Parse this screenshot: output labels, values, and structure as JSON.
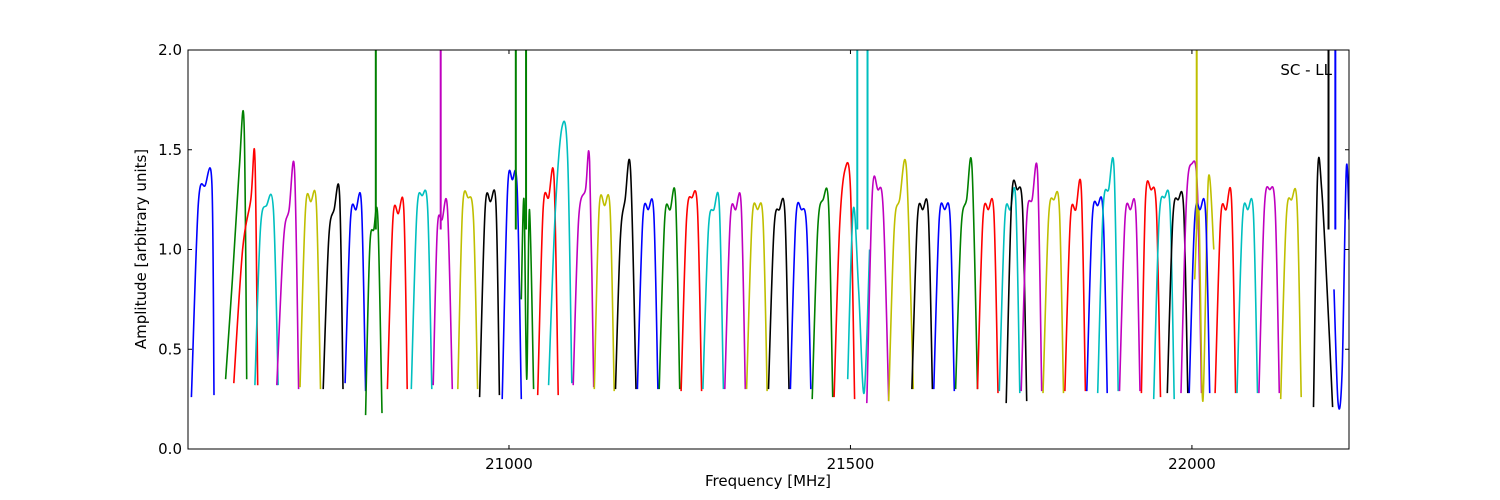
{
  "chart_data": {
    "type": "line",
    "title": "",
    "xlabel": "Frequency [MHz]",
    "ylabel": "Amplitude [arbitrary units]",
    "annotation": "SC - LL",
    "xlim": [
      20530,
      22230
    ],
    "ylim": [
      0.0,
      2.0
    ],
    "x_ticks": [
      21000,
      21500,
      22000
    ],
    "x_tick_labels": [
      "21000",
      "21500",
      "22000"
    ],
    "y_ticks": [
      0.0,
      0.5,
      1.0,
      1.5,
      2.0
    ],
    "y_tick_labels": [
      "0.0",
      "0.5",
      "1.0",
      "1.5",
      "2.0"
    ],
    "grid": false,
    "legend": "none",
    "color_cycle": [
      "#0000ff",
      "#008000",
      "#ff0000",
      "#00bfbf",
      "#bf00bf",
      "#bfbf00",
      "#000000"
    ],
    "shadow_color": "#c0c0c0",
    "channel_width_mhz": 33,
    "series": [
      {
        "color": "#0000ff",
        "x": [
          20535,
          20545,
          20555,
          20565,
          20568
        ],
        "y": [
          0.26,
          1.22,
          1.32,
          1.33,
          0.27
        ]
      },
      {
        "color": "#008000",
        "x": [
          20585,
          20595,
          20605,
          20612,
          20616
        ],
        "y": [
          0.35,
          0.85,
          1.4,
          1.64,
          0.35
        ]
      },
      {
        "color": "#ff0000",
        "x": [
          20597,
          20610,
          20622,
          20628,
          20632
        ],
        "y": [
          0.33,
          1.0,
          1.25,
          1.46,
          0.32
        ]
      },
      {
        "color": "#00bfbf",
        "x": [
          20628,
          20636,
          20645,
          20655,
          20662
        ],
        "y": [
          0.32,
          1.1,
          1.22,
          1.2,
          0.32
        ]
      },
      {
        "color": "#bf00bf",
        "x": [
          20660,
          20670,
          20678,
          20686,
          20692
        ],
        "y": [
          0.32,
          1.05,
          1.2,
          1.4,
          0.3
        ]
      },
      {
        "color": "#bfbf00",
        "x": [
          20694,
          20702,
          20710,
          20718,
          20724
        ],
        "y": [
          0.31,
          1.2,
          1.24,
          1.22,
          0.3
        ]
      },
      {
        "color": "#000000",
        "x": [
          20728,
          20736,
          20744,
          20752,
          20757
        ],
        "y": [
          0.3,
          1.05,
          1.2,
          1.27,
          0.3
        ]
      },
      {
        "color": "#0000ff",
        "x": [
          20760,
          20768,
          20776,
          20784,
          20790
        ],
        "y": [
          0.33,
          1.15,
          1.2,
          1.22,
          0.29
        ]
      },
      {
        "color": "#008000",
        "x": [
          20790,
          20796,
          20802,
          20808,
          20814
        ],
        "y": [
          0.17,
          1.0,
          1.1,
          1.15,
          0.18
        ]
      },
      {
        "color": "#ff0000",
        "x": [
          20822,
          20830,
          20838,
          20846,
          20851
        ],
        "y": [
          0.3,
          1.15,
          1.18,
          1.2,
          0.3
        ]
      },
      {
        "color": "#00bfbf",
        "x": [
          20857,
          20865,
          20873,
          20881,
          20887
        ],
        "y": [
          0.3,
          1.18,
          1.27,
          1.2,
          0.3
        ]
      },
      {
        "color": "#bf00bf",
        "x": [
          20889,
          20895,
          20902,
          20910,
          20917
        ],
        "y": [
          0.32,
          1.1,
          1.15,
          1.2,
          0.3
        ]
      },
      {
        "color": "#bfbf00",
        "x": [
          20925,
          20932,
          20940,
          20948,
          20954
        ],
        "y": [
          0.3,
          1.2,
          1.26,
          1.15,
          0.3
        ]
      },
      {
        "color": "#000000",
        "x": [
          20957,
          20965,
          20973,
          20981,
          20986
        ],
        "y": [
          0.26,
          1.2,
          1.24,
          1.22,
          0.27
        ]
      },
      {
        "color": "#0000ff",
        "x": [
          20990,
          20998,
          21005,
          21012,
          21018
        ],
        "y": [
          0.25,
          1.3,
          1.35,
          1.3,
          0.25
        ]
      },
      {
        "color": "#008000",
        "x": [
          21018,
          21022,
          21026,
          21030,
          21036
        ],
        "y": [
          0.75,
          1.25,
          0.35,
          1.2,
          0.3
        ]
      },
      {
        "color": "#ff0000",
        "x": [
          21042,
          21050,
          21058,
          21066,
          21072
        ],
        "y": [
          0.27,
          1.2,
          1.26,
          1.35,
          0.27
        ]
      },
      {
        "color": "#00bfbf",
        "x": [
          21058,
          21068,
          21078,
          21086,
          21092
        ],
        "y": [
          0.32,
          1.2,
          1.62,
          1.45,
          0.33
        ]
      },
      {
        "color": "#bf00bf",
        "x": [
          21094,
          21102,
          21112,
          21118,
          21124
        ],
        "y": [
          0.32,
          1.15,
          1.3,
          1.44,
          0.31
        ]
      },
      {
        "color": "#bfbf00",
        "x": [
          21125,
          21132,
          21140,
          21148,
          21154
        ],
        "y": [
          0.3,
          1.2,
          1.22,
          1.2,
          0.29
        ]
      },
      {
        "color": "#000000",
        "x": [
          21156,
          21163,
          21170,
          21178,
          21186
        ],
        "y": [
          0.3,
          1.05,
          1.25,
          1.4,
          0.3
        ]
      },
      {
        "color": "#0000ff",
        "x": [
          21188,
          21196,
          21204,
          21212,
          21218
        ],
        "y": [
          0.3,
          1.15,
          1.2,
          1.18,
          0.3
        ]
      },
      {
        "color": "#008000",
        "x": [
          21220,
          21228,
          21236,
          21244,
          21250
        ],
        "y": [
          0.3,
          1.15,
          1.2,
          1.25,
          0.3
        ]
      },
      {
        "color": "#ff0000",
        "x": [
          21252,
          21260,
          21268,
          21276,
          21282
        ],
        "y": [
          0.29,
          1.15,
          1.26,
          1.2,
          0.29
        ]
      },
      {
        "color": "#00bfbf",
        "x": [
          21284,
          21292,
          21300,
          21308,
          21314
        ],
        "y": [
          0.3,
          1.1,
          1.2,
          1.22,
          0.3
        ]
      },
      {
        "color": "#bf00bf",
        "x": [
          21316,
          21324,
          21332,
          21340,
          21346
        ],
        "y": [
          0.3,
          1.15,
          1.2,
          1.22,
          0.3
        ]
      },
      {
        "color": "#bfbf00",
        "x": [
          21348,
          21356,
          21364,
          21372,
          21378
        ],
        "y": [
          0.3,
          1.15,
          1.2,
          1.15,
          0.29
        ]
      },
      {
        "color": "#000000",
        "x": [
          21380,
          21388,
          21396,
          21404,
          21410
        ],
        "y": [
          0.3,
          1.1,
          1.2,
          1.18,
          0.3
        ]
      },
      {
        "color": "#0000ff",
        "x": [
          21412,
          21420,
          21428,
          21436,
          21442
        ],
        "y": [
          0.3,
          1.15,
          1.2,
          1.1,
          0.3
        ]
      },
      {
        "color": "#008000",
        "x": [
          21444,
          21452,
          21460,
          21468,
          21474
        ],
        "y": [
          0.25,
          1.1,
          1.25,
          1.22,
          0.26
        ]
      },
      {
        "color": "#ff0000",
        "x": [
          21476,
          21484,
          21492,
          21500,
          21506
        ],
        "y": [
          0.26,
          1.1,
          1.4,
          1.3,
          0.25
        ]
      },
      {
        "color": "#00bfbf",
        "x": [
          21496,
          21504,
          21512,
          21520,
          21528
        ],
        "y": [
          0.35,
          1.2,
          0.8,
          0.28,
          1.0
        ]
      },
      {
        "color": "#bf00bf",
        "x": [
          21524,
          21532,
          21540,
          21548,
          21556
        ],
        "y": [
          0.23,
          1.28,
          1.3,
          1.2,
          0.24
        ]
      },
      {
        "color": "#bfbf00",
        "x": [
          21556,
          21564,
          21572,
          21582,
          21592
        ],
        "y": [
          0.24,
          1.1,
          1.25,
          1.4,
          0.3
        ]
      },
      {
        "color": "#000000",
        "x": [
          21590,
          21598,
          21606,
          21614,
          21620
        ],
        "y": [
          0.3,
          1.15,
          1.2,
          1.18,
          0.3
        ]
      },
      {
        "color": "#0000ff",
        "x": [
          21622,
          21630,
          21638,
          21646,
          21652
        ],
        "y": [
          0.3,
          1.15,
          1.2,
          1.15,
          0.29
        ]
      },
      {
        "color": "#008000",
        "x": [
          21654,
          21662,
          21670,
          21678,
          21686
        ],
        "y": [
          0.3,
          1.1,
          1.25,
          1.41,
          0.3
        ]
      },
      {
        "color": "#ff0000",
        "x": [
          21686,
          21694,
          21702,
          21710,
          21716
        ],
        "y": [
          0.3,
          1.15,
          1.2,
          1.18,
          0.28
        ]
      },
      {
        "color": "#00bfbf",
        "x": [
          21718,
          21726,
          21734,
          21742,
          21748
        ],
        "y": [
          0.29,
          1.15,
          1.2,
          1.25,
          0.28
        ]
      },
      {
        "color": "#000000",
        "x": [
          21728,
          21736,
          21744,
          21752,
          21758
        ],
        "y": [
          0.23,
          1.25,
          1.3,
          1.2,
          0.24
        ]
      },
      {
        "color": "#bf00bf",
        "x": [
          21750,
          21758,
          21766,
          21774,
          21780
        ],
        "y": [
          0.29,
          1.15,
          1.25,
          1.38,
          0.29
        ]
      },
      {
        "color": "#bfbf00",
        "x": [
          21782,
          21790,
          21798,
          21806,
          21812
        ],
        "y": [
          0.28,
          1.15,
          1.25,
          1.2,
          0.28
        ]
      },
      {
        "color": "#ff0000",
        "x": [
          21814,
          21822,
          21830,
          21838,
          21844
        ],
        "y": [
          0.29,
          1.15,
          1.2,
          1.3,
          0.29
        ]
      },
      {
        "color": "#0000ff",
        "x": [
          21846,
          21854,
          21862,
          21870,
          21876
        ],
        "y": [
          0.29,
          1.15,
          1.22,
          1.18,
          0.28
        ]
      },
      {
        "color": "#00bfbf",
        "x": [
          21862,
          21870,
          21878,
          21886,
          21892
        ],
        "y": [
          0.28,
          1.2,
          1.3,
          1.4,
          0.29
        ]
      },
      {
        "color": "#bf00bf",
        "x": [
          21894,
          21902,
          21910,
          21918,
          21924
        ],
        "y": [
          0.29,
          1.15,
          1.2,
          1.18,
          0.29
        ]
      },
      {
        "color": "#ff0000",
        "x": [
          21926,
          21932,
          21940,
          21948,
          21954
        ],
        "y": [
          0.28,
          1.25,
          1.3,
          1.2,
          0.26
        ]
      },
      {
        "color": "#00bfbf",
        "x": [
          21944,
          21952,
          21960,
          21968,
          21974
        ],
        "y": [
          0.25,
          1.15,
          1.26,
          1.2,
          0.25
        ]
      },
      {
        "color": "#000000",
        "x": [
          21964,
          21972,
          21980,
          21988,
          21994
        ],
        "y": [
          0.28,
          1.15,
          1.25,
          1.2,
          0.28
        ]
      },
      {
        "color": "#bf00bf",
        "x": [
          21984,
          21992,
          22000,
          22008,
          22014
        ],
        "y": [
          0.28,
          1.25,
          1.43,
          1.3,
          0.28
        ]
      },
      {
        "color": "#bfbf00",
        "x": [
          22004,
          22010,
          22016,
          22024,
          22032
        ],
        "y": [
          0.85,
          1.2,
          0.24,
          1.35,
          1.0
        ]
      },
      {
        "color": "#0000ff",
        "x": [
          21996,
          22004,
          22012,
          22020,
          22026
        ],
        "y": [
          0.28,
          1.15,
          1.2,
          1.18,
          0.28
        ]
      },
      {
        "color": "#ff0000",
        "x": [
          22034,
          22042,
          22050,
          22058,
          22064
        ],
        "y": [
          0.28,
          1.15,
          1.2,
          1.25,
          0.28
        ]
      },
      {
        "color": "#00bfbf",
        "x": [
          22066,
          22074,
          22082,
          22090,
          22096
        ],
        "y": [
          0.28,
          1.15,
          1.2,
          1.18,
          0.28
        ]
      },
      {
        "color": "#bf00bf",
        "x": [
          22098,
          22106,
          22114,
          22122,
          22128
        ],
        "y": [
          0.28,
          1.2,
          1.3,
          1.2,
          0.28
        ]
      },
      {
        "color": "#bfbf00",
        "x": [
          22130,
          22138,
          22146,
          22154,
          22160
        ],
        "y": [
          0.25,
          1.15,
          1.25,
          1.22,
          0.26
        ]
      },
      {
        "color": "#000000",
        "x": [
          22178,
          22184,
          22190,
          22198,
          22206
        ],
        "y": [
          0.21,
          1.38,
          1.3,
          0.8,
          0.21
        ]
      },
      {
        "color": "#0000ff",
        "x": [
          22208,
          22214,
          22220,
          22226,
          22230
        ],
        "y": [
          0.8,
          0.23,
          0.4,
          1.4,
          1.15
        ]
      }
    ],
    "spikes": [
      {
        "color": "#008000",
        "x": 20805,
        "y": 2.0
      },
      {
        "color": "#bf00bf",
        "x": 20900,
        "y": 2.0
      },
      {
        "color": "#008000",
        "x": 21010,
        "y": 2.0
      },
      {
        "color": "#008000",
        "x": 21025,
        "y": 2.0
      },
      {
        "color": "#00bfbf",
        "x": 21510,
        "y": 2.0
      },
      {
        "color": "#00bfbf",
        "x": 21525,
        "y": 2.0
      },
      {
        "color": "#bfbf00",
        "x": 22007,
        "y": 2.0
      },
      {
        "color": "#000000",
        "x": 22200,
        "y": 2.0
      },
      {
        "color": "#0000ff",
        "x": 22210,
        "y": 2.0
      }
    ]
  }
}
